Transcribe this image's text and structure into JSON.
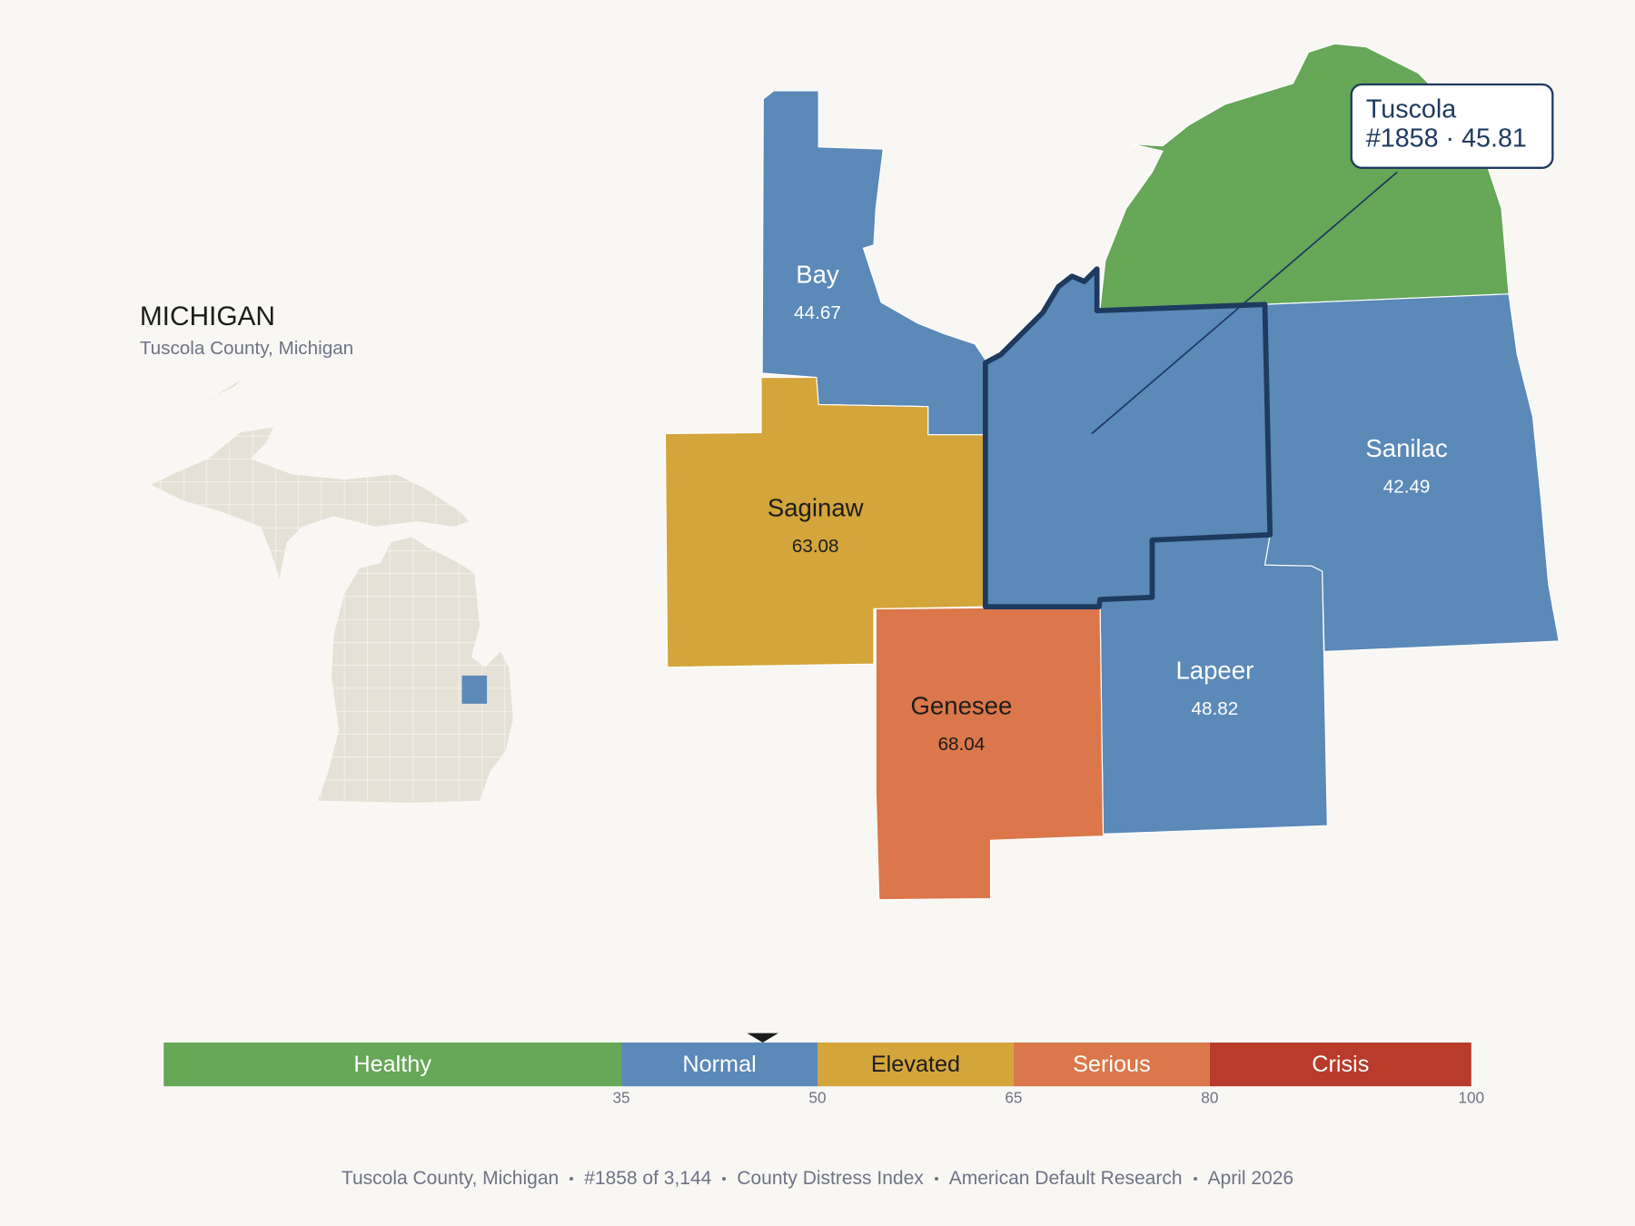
{
  "header": {
    "state": "MICHIGAN",
    "subtitle": "Tuscola County, Michigan"
  },
  "counties": [
    {
      "name": "Bay",
      "score": 44.67
    },
    {
      "name": "Saginaw",
      "score": 63.08
    },
    {
      "name": "Sanilac",
      "score": 42.49
    },
    {
      "name": "Lapeer",
      "score": 48.82
    },
    {
      "name": "Genesee",
      "score": 68.04
    }
  ],
  "selected": {
    "name": "Tuscola",
    "score": 45.81,
    "callout_line": "#1858 · 45.81"
  },
  "legend": {
    "xlim": [
      0,
      100
    ],
    "ticks": [
      35,
      50,
      65,
      80,
      100
    ],
    "bands": [
      {
        "label": "Healthy",
        "color": "#66a758"
      },
      {
        "label": "Normal",
        "color": "#5b89b8"
      },
      {
        "label": "Elevated",
        "color": "#d4a53b"
      },
      {
        "label": "Serious",
        "color": "#db774a"
      },
      {
        "label": "Crisis",
        "color": "#b83b2b"
      }
    ]
  },
  "footer": [
    "Tuscola County, Michigan",
    "#1858 of 3,144",
    "County Distress Index",
    "American Default Research",
    "April 2026"
  ]
}
